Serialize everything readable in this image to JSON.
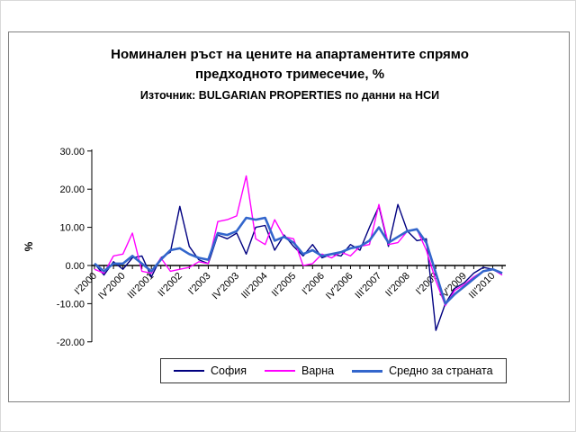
{
  "title_line1": "Номинален ръст на цените на апартаментите спрямо",
  "title_line2": "предходното тримесечие, %",
  "subtitle": "Източник: BULGARIAN PROPERTIES по данни на НСИ",
  "chart_data": {
    "type": "line",
    "title": "Номинален ръст на цените на апартаментите спрямо предходното тримесечие, %",
    "subtitle": "Източник: BULGARIAN PROPERTIES по данни на НСИ",
    "xlabel": "",
    "ylabel": "%",
    "ylim": [
      -20,
      30
    ],
    "grid": false,
    "legend_position": "bottom",
    "y_ticks": [
      30,
      20,
      10,
      0,
      -10,
      -20
    ],
    "y_tick_labels": [
      "30.00",
      "20.00",
      "10.00",
      "0.00",
      "-10.00",
      "-20.00"
    ],
    "x_tick_step": 3,
    "categories": [
      "I'2000",
      "II'2000",
      "III'2000",
      "IV'2000",
      "I'2001",
      "II'2001",
      "III'2001",
      "IV'2001",
      "I'2002",
      "II'2002",
      "III'2002",
      "IV'2002",
      "I'2003",
      "II'2003",
      "III'2003",
      "IV'2003",
      "I'2004",
      "II'2004",
      "III'2004",
      "IV'2004",
      "I'2005",
      "II'2005",
      "III'2005",
      "IV'2005",
      "I'2006",
      "II'2006",
      "III'2006",
      "IV'2006",
      "I'2007",
      "II'2007",
      "III'2007",
      "IV'2007",
      "I'2008",
      "II'2008",
      "III'2008",
      "IV'2008",
      "I'2009",
      "II'2009",
      "III'2009",
      "IV'2009",
      "I'2010",
      "II'2010",
      "III'2010",
      "IV'2010"
    ],
    "series": [
      {
        "name": "София",
        "color": "#000080",
        "stroke_width": 1.4,
        "values": [
          0.5,
          -2.5,
          1.0,
          -1.0,
          2.0,
          2.5,
          -3.0,
          2.0,
          3.5,
          15.5,
          5.0,
          1.5,
          0.5,
          8.0,
          7.0,
          8.5,
          3.0,
          10.0,
          10.5,
          4.0,
          8.0,
          5.0,
          2.5,
          5.5,
          2.0,
          3.0,
          2.5,
          5.5,
          4.0,
          10.0,
          15.5,
          5.0,
          16.0,
          9.0,
          6.5,
          7.0,
          -17.0,
          -10.0,
          -6.0,
          -4.5,
          -2.0,
          -0.5,
          -1.0,
          -2.0
        ]
      },
      {
        "name": "Варна",
        "color": "#FF00FF",
        "stroke_width": 1.4,
        "values": [
          -1.0,
          -2.0,
          2.5,
          3.0,
          8.5,
          -1.5,
          -2.0,
          2.0,
          -1.5,
          -1.0,
          -0.5,
          1.0,
          0.5,
          11.5,
          12.0,
          13.0,
          23.5,
          7.0,
          5.5,
          12.0,
          7.5,
          7.0,
          0.0,
          0.5,
          3.0,
          2.0,
          3.5,
          2.5,
          5.0,
          5.5,
          16.0,
          5.5,
          6.0,
          9.0,
          9.5,
          4.0,
          -4.0,
          -10.5,
          -6.5,
          -5.0,
          -3.0,
          -1.5,
          -1.0,
          -2.5
        ]
      },
      {
        "name": "Средно за страната",
        "color": "#3366CC",
        "stroke_width": 2.6,
        "values": [
          0.5,
          -1.5,
          0.5,
          0.5,
          2.5,
          0.5,
          -1.5,
          1.5,
          4.0,
          4.5,
          3.0,
          2.0,
          1.5,
          8.5,
          8.0,
          9.0,
          12.5,
          12.0,
          12.5,
          6.5,
          7.5,
          6.0,
          3.0,
          4.0,
          2.5,
          3.0,
          3.5,
          4.5,
          5.0,
          6.5,
          10.0,
          6.0,
          7.5,
          9.0,
          9.5,
          6.0,
          -2.0,
          -10.0,
          -7.5,
          -5.5,
          -3.5,
          -1.5,
          -1.0,
          -2.0
        ]
      }
    ]
  }
}
